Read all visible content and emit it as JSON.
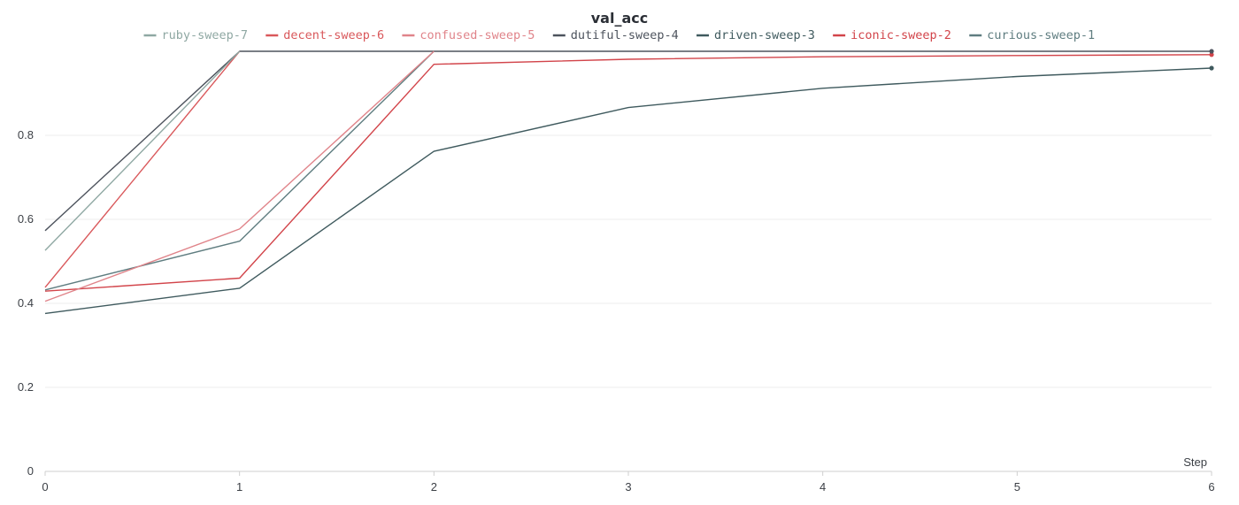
{
  "chart_data": {
    "type": "line",
    "title": "val_acc",
    "xlabel": "Step",
    "ylabel": "",
    "x": [
      0,
      1,
      2,
      3,
      4,
      5,
      6
    ],
    "xlim": [
      0,
      6
    ],
    "ylim": [
      0,
      1
    ],
    "x_ticks": [
      "0",
      "1",
      "2",
      "3",
      "4",
      "5",
      "6"
    ],
    "y_ticks": [
      {
        "value": 0,
        "label": "0"
      },
      {
        "value": 0.2,
        "label": "0.2"
      },
      {
        "value": 0.4,
        "label": "0.4"
      },
      {
        "value": 0.6,
        "label": "0.6"
      },
      {
        "value": 0.8,
        "label": "0.8"
      }
    ],
    "grid": true,
    "legend_position": "top",
    "series": [
      {
        "name": "ruby-sweep-7",
        "color": "#8fa8a3",
        "x": [
          0,
          1
        ],
        "values": [
          0.526,
          1.0
        ],
        "endpoint": false
      },
      {
        "name": "decent-sweep-6",
        "color": "#d9585b",
        "x": [
          0,
          1
        ],
        "values": [
          0.438,
          1.0
        ],
        "endpoint": false
      },
      {
        "name": "confused-sweep-5",
        "color": "#e0848a",
        "x": [
          0,
          1,
          2
        ],
        "values": [
          0.405,
          0.577,
          1.0
        ],
        "endpoint": false
      },
      {
        "name": "dutiful-sweep-4",
        "color": "#4d535d",
        "x": [
          0,
          1,
          2,
          3,
          4,
          5,
          6
        ],
        "values": [
          0.573,
          1.0,
          1.0,
          1.0,
          1.0,
          1.0,
          1.0
        ],
        "endpoint": true
      },
      {
        "name": "driven-sweep-3",
        "color": "#3f5a5e",
        "x": [
          0,
          1,
          2,
          3,
          4,
          5,
          6
        ],
        "values": [
          0.376,
          0.436,
          0.762,
          0.866,
          0.912,
          0.94,
          0.96
        ],
        "endpoint": true
      },
      {
        "name": "iconic-sweep-2",
        "color": "#d2444a",
        "x": [
          0,
          1,
          2,
          3,
          4,
          5,
          6
        ],
        "values": [
          0.429,
          0.46,
          0.969,
          0.981,
          0.987,
          0.99,
          0.992
        ],
        "endpoint": true
      },
      {
        "name": "curious-sweep-1",
        "color": "#5f7d80",
        "x": [
          0,
          1,
          2
        ],
        "values": [
          0.432,
          0.548,
          1.0
        ],
        "endpoint": false
      }
    ]
  }
}
